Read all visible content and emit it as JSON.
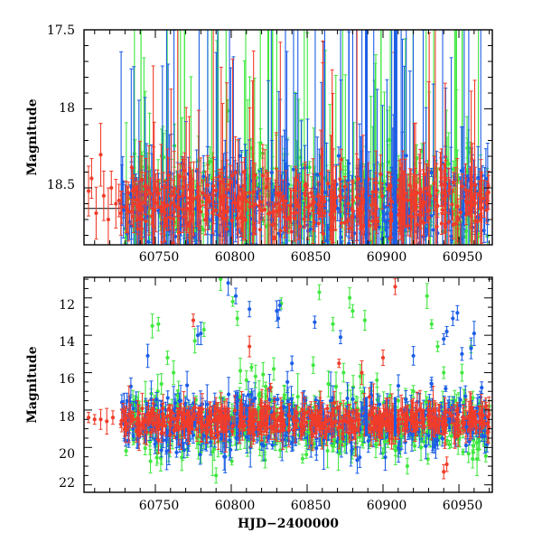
{
  "chart_data": [
    {
      "type": "scatter",
      "panel": "top",
      "title": "",
      "xlabel": "",
      "ylabel": "Magnitude",
      "xlim": [
        60703,
        60972
      ],
      "ylim": [
        18.86,
        17.5
      ],
      "y_inverted": true,
      "grid": false,
      "legend": "none",
      "x_tick_labels": [
        "60750",
        "60800",
        "60850",
        "60900",
        "60950"
      ],
      "y_tick_labels": [
        "17.5",
        "18",
        "18.5"
      ],
      "reference_line": {
        "y": 18.63,
        "x_range": [
          60703,
          60727
        ]
      },
      "series": [
        {
          "name": "red",
          "color": "#f03c2a",
          "values": [
            [
              60706,
              18.52
            ],
            [
              60708,
              18.44
            ],
            [
              60711,
              18.66
            ],
            [
              60714,
              18.29
            ],
            [
              60716,
              18.55
            ],
            [
              60719,
              18.7
            ],
            [
              60721,
              18.5
            ],
            [
              60724,
              18.6
            ],
            [
              60726,
              18.58
            ]
          ]
        },
        {
          "name": "red-dense",
          "color": "#f03c2a",
          "x_range": [
            60727,
            60970
          ],
          "y_center": 18.6,
          "y_spread": 0.09
        },
        {
          "name": "blue-dense",
          "color": "#1c5ee6",
          "x_range": [
            60727,
            60970
          ],
          "y_center": 18.62,
          "y_spread": 0.13
        },
        {
          "name": "green-dense",
          "color": "#3fe83f",
          "x_range": [
            60730,
            60970
          ],
          "y_center": 18.6,
          "y_spread": 0.15
        }
      ]
    },
    {
      "type": "scatter",
      "panel": "bottom",
      "title": "",
      "xlabel": "HJD−2400000",
      "ylabel": "Magnitude",
      "xlim": [
        60703,
        60972
      ],
      "ylim": [
        22.4,
        10.9
      ],
      "y_inverted": true,
      "grid": false,
      "legend": "none",
      "x_tick_labels": [
        "60750",
        "60800",
        "60850",
        "60900",
        "60950"
      ],
      "y_tick_labels": [
        "12",
        "14",
        "16",
        "18",
        "20",
        "22"
      ],
      "series": [
        {
          "name": "red",
          "color": "#f03c2a",
          "values": [
            [
              60706,
              18.4
            ],
            [
              60710,
              18.5
            ],
            [
              60714,
              18.5
            ],
            [
              60718,
              18.6
            ],
            [
              60722,
              18.4
            ],
            [
              60775,
              13.2
            ],
            [
              60812,
              14.6
            ],
            [
              60826,
              16.8
            ],
            [
              60871,
              15.5
            ],
            [
              60886,
              16.0
            ],
            [
              60891,
              17.3
            ],
            [
              60900,
              15.2
            ],
            [
              60908,
              11.4
            ],
            [
              60930,
              18.0
            ],
            [
              60940,
              21.3
            ],
            [
              60942,
              20.9
            ]
          ]
        },
        {
          "name": "red-dense",
          "color": "#f03c2a",
          "x_range": [
            60727,
            60970
          ],
          "y_center": 18.6,
          "y_spread": 0.35
        },
        {
          "name": "blue",
          "color": "#1c5ee6",
          "values": [
            [
              60745,
              15.1
            ],
            [
              60778,
              14.0
            ],
            [
              60780,
              13.9
            ],
            [
              60798,
              11.2
            ],
            [
              60803,
              11.9
            ],
            [
              60812,
              12.6
            ],
            [
              60830,
              12.7
            ],
            [
              60831,
              13.1
            ],
            [
              60832,
              12.4
            ],
            [
              60837,
              16.5
            ],
            [
              60840,
              15.5
            ],
            [
              60855,
              13.3
            ],
            [
              60872,
              14.1
            ],
            [
              60888,
              18.3
            ],
            [
              60920,
              15.1
            ],
            [
              60932,
              16.6
            ],
            [
              60940,
              14.2
            ],
            [
              60942,
              13.8
            ],
            [
              60946,
              13.1
            ],
            [
              60949,
              12.8
            ],
            [
              60952,
              15.0
            ],
            [
              60955,
              18.9
            ],
            [
              60958,
              14.7
            ],
            [
              60960,
              13.9
            ],
            [
              60965,
              16.8
            ]
          ]
        },
        {
          "name": "blue-dense",
          "color": "#1c5ee6",
          "x_range": [
            60727,
            60970
          ],
          "y_center": 18.7,
          "y_spread": 0.7
        },
        {
          "name": "green",
          "color": "#3fe83f",
          "values": [
            [
              60748,
              13.5
            ],
            [
              60752,
              13.4
            ],
            [
              60754,
              16.6
            ],
            [
              60758,
              15.2
            ],
            [
              60762,
              16.0
            ],
            [
              60776,
              14.3
            ],
            [
              60782,
              13.7
            ],
            [
              60790,
              21.5
            ],
            [
              60793,
              11.0
            ],
            [
              60801,
              12.2
            ],
            [
              60804,
              13.1
            ],
            [
              60806,
              15.9
            ],
            [
              60810,
              16.4
            ],
            [
              60816,
              16.2
            ],
            [
              60818,
              17.9
            ],
            [
              60821,
              16.1
            ],
            [
              60828,
              15.8
            ],
            [
              60833,
              12.3
            ],
            [
              60835,
              17.2
            ],
            [
              60847,
              20.6
            ],
            [
              60851,
              19.2
            ],
            [
              60854,
              15.6
            ],
            [
              60858,
              11.7
            ],
            [
              60864,
              16.6
            ],
            [
              60867,
              13.4
            ],
            [
              60872,
              19.7
            ],
            [
              60874,
              16.0
            ],
            [
              60878,
              12.0
            ],
            [
              60880,
              12.7
            ],
            [
              60885,
              16.2
            ],
            [
              60888,
              13.2
            ],
            [
              60896,
              16.4
            ],
            [
              60901,
              19.7
            ],
            [
              60912,
              19.4
            ],
            [
              60916,
              21.0
            ],
            [
              60920,
              17.0
            ],
            [
              60925,
              20.0
            ],
            [
              60929,
              11.9
            ],
            [
              60932,
              13.4
            ],
            [
              60936,
              14.6
            ],
            [
              60940,
              16.0
            ],
            [
              60945,
              19.4
            ],
            [
              60952,
              16.0
            ],
            [
              60958,
              14.6
            ],
            [
              60963,
              20.1
            ]
          ]
        },
        {
          "name": "green-dense",
          "color": "#3fe83f",
          "x_range": [
            60730,
            60970
          ],
          "y_center": 18.8,
          "y_spread": 0.8
        }
      ]
    }
  ]
}
